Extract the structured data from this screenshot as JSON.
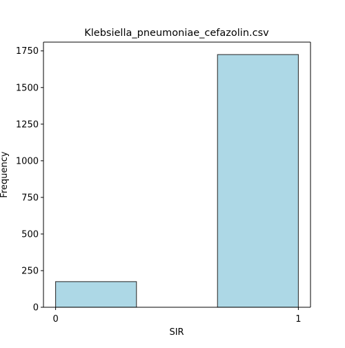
{
  "chart_data": {
    "type": "bar",
    "title": "Klebsiella_pneumoniae_cefazolin.csv",
    "xlabel": "SIR",
    "ylabel": "Frequency",
    "xlim": [
      -0.05,
      1.05
    ],
    "ylim": [
      0,
      1810
    ],
    "xticks": [
      0,
      1
    ],
    "xtick_labels": [
      "0",
      "1"
    ],
    "yticks": [
      0,
      250,
      500,
      750,
      1000,
      1250,
      1500,
      1750
    ],
    "ytick_labels": [
      "0",
      "250",
      "500",
      "750",
      "1000",
      "1250",
      "1500",
      "1750"
    ],
    "bins": [
      {
        "x_start": 0.0,
        "x_end": 0.333,
        "value": 175
      },
      {
        "x_start": 0.667,
        "x_end": 1.0,
        "value": 1725
      }
    ],
    "grid": false,
    "bar_color": "#add8e6",
    "edge_color": "#333333"
  }
}
